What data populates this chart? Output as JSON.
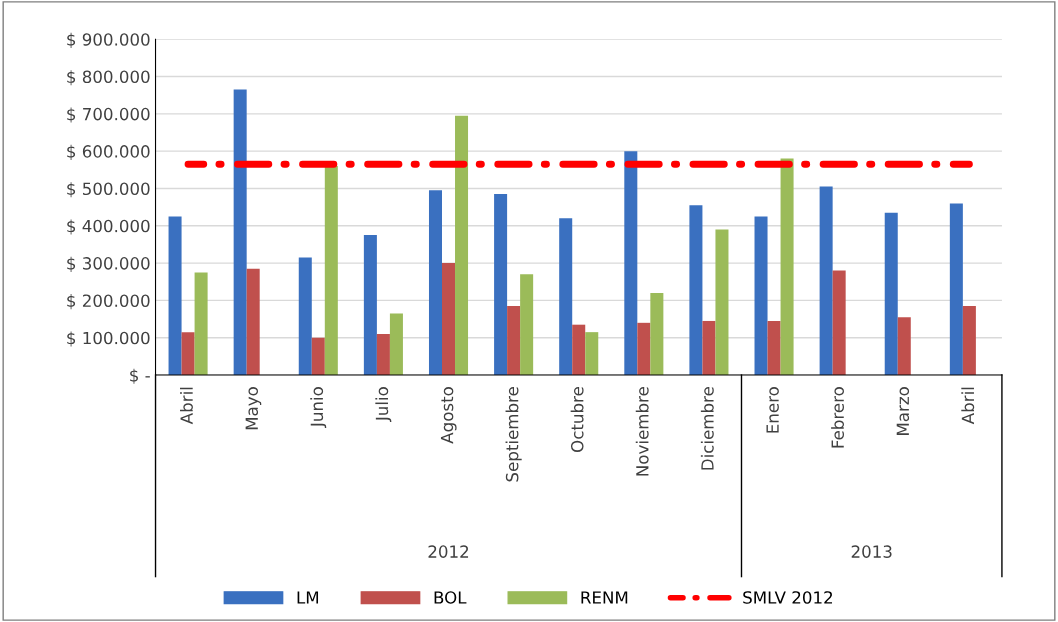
{
  "chart_data": {
    "type": "bar",
    "categories": [
      "Abril",
      "Mayo",
      "Junio",
      "Julio",
      "Agosto",
      "Septiembre",
      "Octubre",
      "Noviembre",
      "Diciembre",
      "Enero",
      "Febrero",
      "Marzo",
      "Abril"
    ],
    "series": [
      {
        "name": "LM",
        "color": "#3a70c0",
        "values": [
          425000,
          765000,
          315000,
          375000,
          495000,
          485000,
          420000,
          600000,
          455000,
          425000,
          505000,
          435000,
          460000
        ]
      },
      {
        "name": "BOL",
        "color": "#c0504d",
        "values": [
          115000,
          285000,
          100000,
          110000,
          300000,
          185000,
          135000,
          140000,
          145000,
          145000,
          280000,
          155000,
          185000
        ]
      },
      {
        "name": "RENM",
        "color": "#9bbb59",
        "values": [
          275000,
          null,
          560000,
          165000,
          695000,
          270000,
          115000,
          220000,
          390000,
          580000,
          null,
          null,
          null
        ]
      },
      {
        "name": "SMLV 2012",
        "type": "line",
        "color": "#ff0000",
        "line_style": "dashed",
        "values": [
          565000,
          565000,
          565000,
          565000,
          565000,
          565000,
          565000,
          565000,
          565000,
          565000,
          565000,
          565000,
          565000
        ]
      }
    ],
    "ylim": [
      0,
      900000
    ],
    "yticks": [
      {
        "value": 0,
        "label": "$ -"
      },
      {
        "value": 100000,
        "label": "$ 100.000"
      },
      {
        "value": 200000,
        "label": "$ 200.000"
      },
      {
        "value": 300000,
        "label": "$ 300.000"
      },
      {
        "value": 400000,
        "label": "$ 400.000"
      },
      {
        "value": 500000,
        "label": "$ 500.000"
      },
      {
        "value": 600000,
        "label": "$ 600.000"
      },
      {
        "value": 700000,
        "label": "$ 700.000"
      },
      {
        "value": 800000,
        "label": "$ 800.000"
      },
      {
        "value": 900000,
        "label": "$ 900.000"
      }
    ],
    "grid": "y",
    "legend": "bottom",
    "annotations": [
      "2012",
      "2013"
    ]
  }
}
